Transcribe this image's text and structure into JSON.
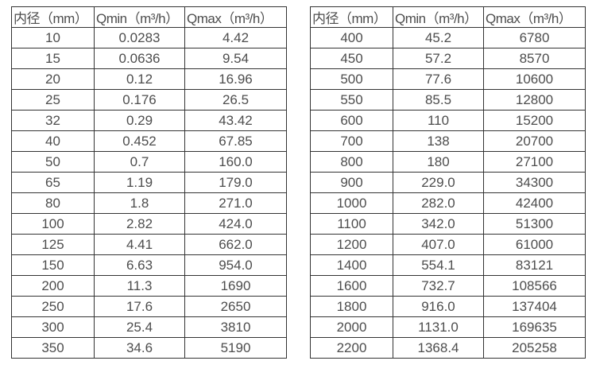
{
  "page": {
    "description": "Flow meter diameter specification tables",
    "colors": {
      "background": "#ffffff",
      "border": "#333333",
      "text": "#4d4d4d"
    }
  },
  "tables": [
    {
      "name": "small-diameters",
      "columns": [
        "内径（mm）",
        "Qmin（m³/h）",
        "Qmax（m³/h）"
      ],
      "rows": [
        [
          "10",
          "0.0283",
          "4.42"
        ],
        [
          "15",
          "0.0636",
          "9.54"
        ],
        [
          "20",
          "0.12",
          "16.96"
        ],
        [
          "25",
          "0.176",
          "26.5"
        ],
        [
          "32",
          "0.29",
          "43.42"
        ],
        [
          "40",
          "0.452",
          "67.85"
        ],
        [
          "50",
          "0.7",
          "160.0"
        ],
        [
          "65",
          "1.19",
          "179.0"
        ],
        [
          "80",
          "1.8",
          "271.0"
        ],
        [
          "100",
          "2.82",
          "424.0"
        ],
        [
          "125",
          "4.41",
          "662.0"
        ],
        [
          "150",
          "6.63",
          "954.0"
        ],
        [
          "200",
          "11.3",
          "1690"
        ],
        [
          "250",
          "17.6",
          "2650"
        ],
        [
          "300",
          "25.4",
          "3810"
        ],
        [
          "350",
          "34.6",
          "5190"
        ]
      ]
    },
    {
      "name": "large-diameters",
      "columns": [
        "内径（mm）",
        "Qmin（m³/h）",
        "Qmax（m³/h）"
      ],
      "rows": [
        [
          "400",
          "45.2",
          "6780"
        ],
        [
          "450",
          "57.2",
          "8570"
        ],
        [
          "500",
          "77.6",
          "10600"
        ],
        [
          "550",
          "85.5",
          "12800"
        ],
        [
          "600",
          "110",
          "15200"
        ],
        [
          "700",
          "138",
          "20700"
        ],
        [
          "800",
          "180",
          "27100"
        ],
        [
          "900",
          "229.0",
          "34300"
        ],
        [
          "1000",
          "282.0",
          "42400"
        ],
        [
          "1100",
          "342.0",
          "51300"
        ],
        [
          "1200",
          "407.0",
          "61000"
        ],
        [
          "1400",
          "554.1",
          "83121"
        ],
        [
          "1600",
          "732.7",
          "108566"
        ],
        [
          "1800",
          "916.0",
          "137404"
        ],
        [
          "2000",
          "1131.0",
          "169635"
        ],
        [
          "2200",
          "1368.4",
          "205258"
        ]
      ]
    }
  ]
}
